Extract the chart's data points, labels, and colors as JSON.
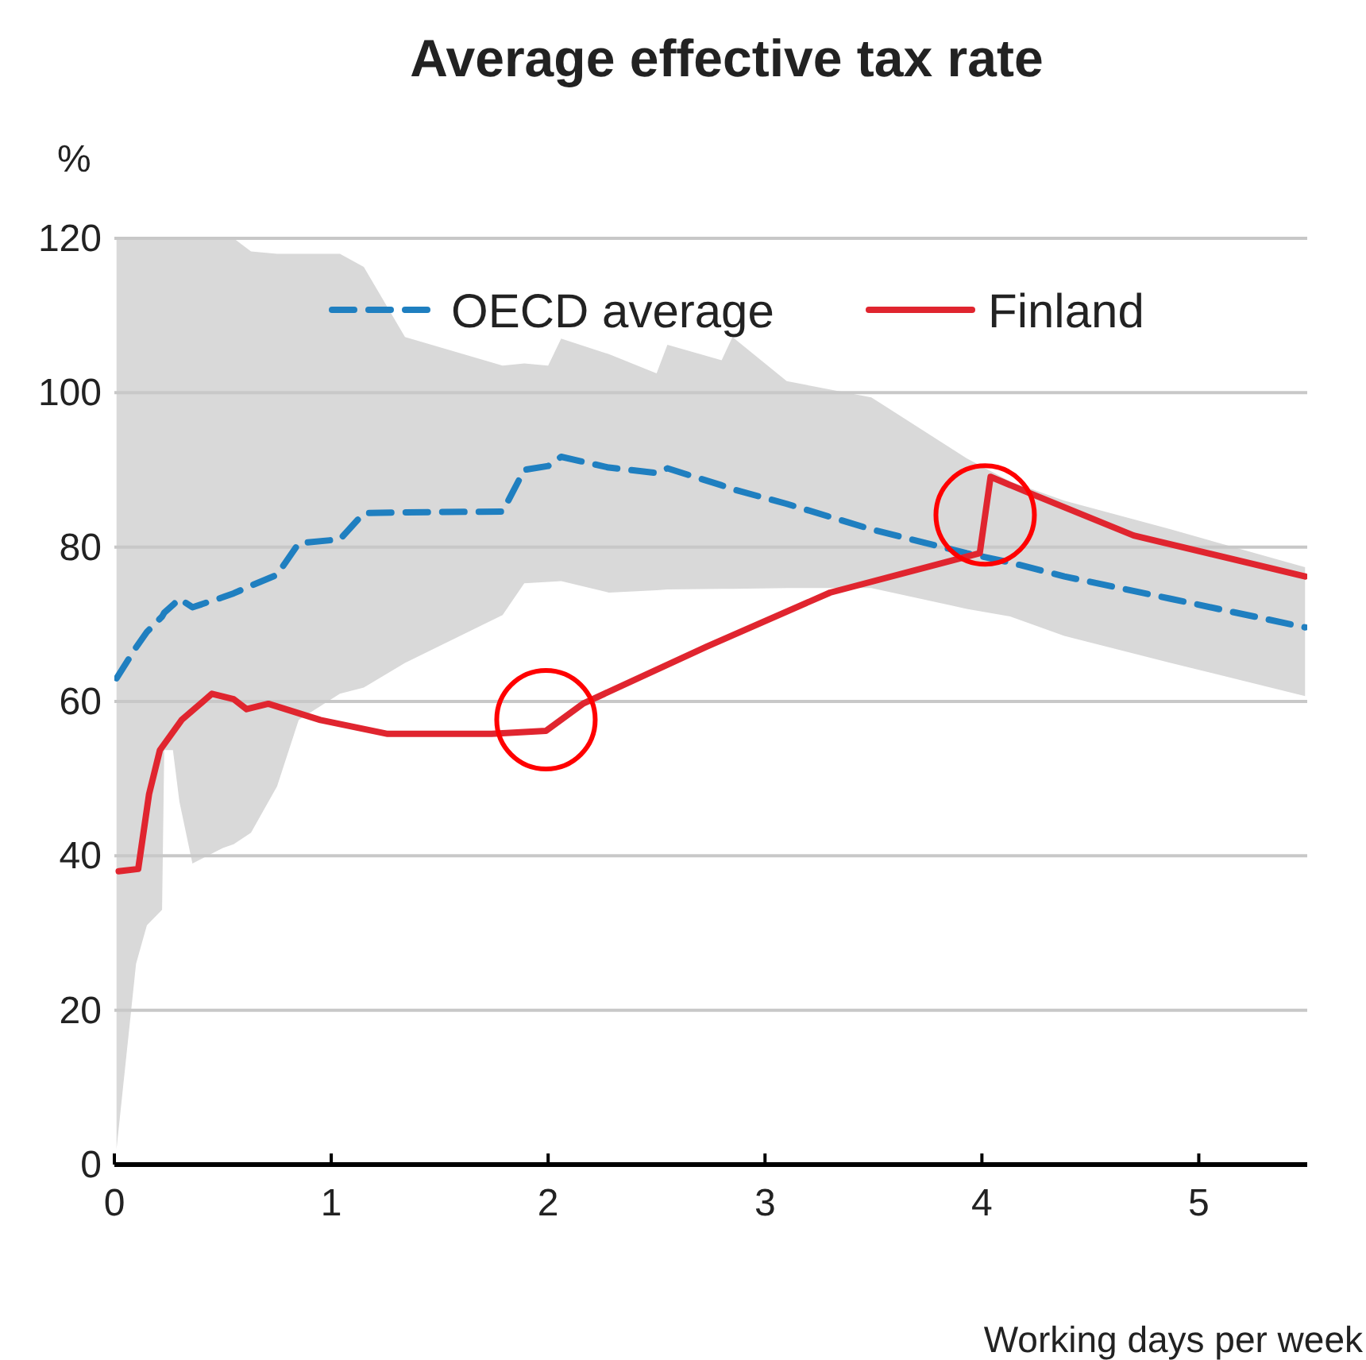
{
  "chart_data": {
    "type": "line",
    "title": "Average effective tax rate",
    "ylabel": "%",
    "xlabel": "Working days per week",
    "xlim": [
      0,
      5.5
    ],
    "xticks": [
      0,
      1,
      2,
      3,
      4,
      5
    ],
    "ylim": [
      0,
      120
    ],
    "yticks": [
      0,
      20,
      40,
      60,
      80,
      100,
      120
    ],
    "grid": "y",
    "legend": "top",
    "series": [
      {
        "name": "OECD average",
        "color": "#1f7fc0",
        "line_style": "dashed",
        "x": [
          0.01,
          0.1,
          0.15,
          0.22,
          0.23,
          0.27,
          0.3,
          0.36,
          0.5,
          0.55,
          0.63,
          0.75,
          0.85,
          1.04,
          1.15,
          1.34,
          1.79,
          1.89,
          2.0,
          2.06,
          2.28,
          2.5,
          2.55,
          2.8,
          2.85,
          3.1,
          3.49,
          3.93,
          4.13,
          4.38,
          4.87,
          5.49
        ],
        "values": [
          63,
          67,
          69,
          71,
          71.5,
          72.5,
          73.3,
          72.2,
          73.5,
          74,
          75,
          76.4,
          80.5,
          81,
          84.4,
          84.5,
          84.6,
          90,
          90.5,
          91.7,
          90.3,
          89.6,
          90.2,
          88,
          87.5,
          85.6,
          82.3,
          79.2,
          78,
          76.2,
          73.3,
          69.6
        ],
        "lower": [
          2,
          26,
          31,
          33,
          53.7,
          53.7,
          47,
          39,
          41,
          41.5,
          43,
          49,
          57.6,
          61,
          61.8,
          65,
          71.2,
          75.3,
          75.5,
          75.6,
          74.1,
          74.4,
          74.5,
          74.6,
          74.6,
          74.7,
          74.7,
          72,
          71,
          68.5,
          65,
          60.7
        ],
        "upper": [
          120,
          120,
          120,
          120,
          120,
          120,
          120,
          120,
          120,
          120,
          118.3,
          118,
          118,
          118,
          116.3,
          107.2,
          103.5,
          103.8,
          103.5,
          107,
          105,
          102.5,
          106.2,
          104.2,
          107.2,
          101.5,
          99.4,
          91.5,
          88.5,
          86,
          82.3,
          77.4
        ]
      },
      {
        "name": "Finland",
        "color": "#e0252f",
        "line_style": "solid",
        "x": [
          0.02,
          0.11,
          0.16,
          0.21,
          0.31,
          0.45,
          0.55,
          0.61,
          0.71,
          0.95,
          1.26,
          1.74,
          1.99,
          2.16,
          2.73,
          3.3,
          3.99,
          4.04,
          4.21,
          4.7,
          5.49
        ],
        "values": [
          38,
          38.3,
          48,
          53.7,
          57.6,
          61,
          60.3,
          59,
          59.7,
          57.6,
          55.8,
          55.8,
          56.2,
          59.7,
          67.1,
          74.1,
          79.2,
          89.1,
          87.1,
          81.5,
          76.2
        ]
      }
    ]
  }
}
